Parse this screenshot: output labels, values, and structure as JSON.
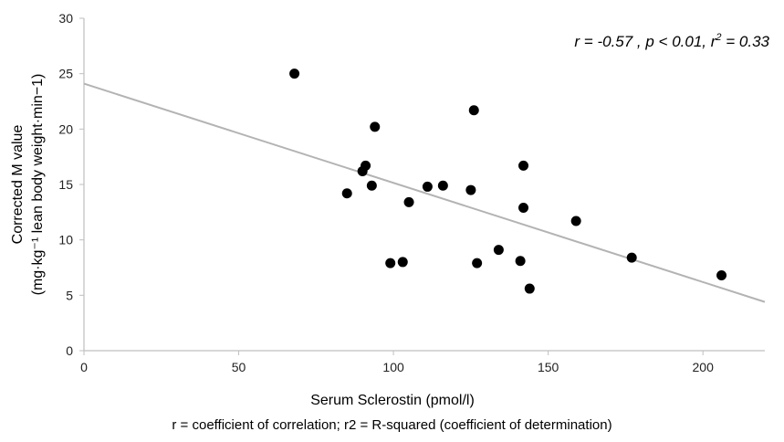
{
  "chart_data": {
    "type": "scatter",
    "xlabel": "Serum Sclerostin (pmol/l)",
    "ylabel_line1": "Corrected M value",
    "ylabel_line2": "(mg·kg⁻¹ lean body weight·min−1)",
    "xlim": [
      0,
      220
    ],
    "ylim": [
      0,
      30
    ],
    "x_ticks": [
      0,
      50,
      100,
      150,
      200
    ],
    "y_ticks": [
      0,
      5,
      10,
      15,
      20,
      25,
      30
    ],
    "grid": false,
    "points": [
      {
        "x": 68,
        "y": 25.0
      },
      {
        "x": 94,
        "y": 20.2
      },
      {
        "x": 126,
        "y": 21.7
      },
      {
        "x": 90,
        "y": 16.2
      },
      {
        "x": 91,
        "y": 16.7
      },
      {
        "x": 142,
        "y": 16.7
      },
      {
        "x": 85,
        "y": 14.2
      },
      {
        "x": 93,
        "y": 14.9
      },
      {
        "x": 111,
        "y": 14.8
      },
      {
        "x": 116,
        "y": 14.9
      },
      {
        "x": 125,
        "y": 14.5
      },
      {
        "x": 105,
        "y": 13.4
      },
      {
        "x": 142,
        "y": 12.9
      },
      {
        "x": 159,
        "y": 11.7
      },
      {
        "x": 134,
        "y": 9.1
      },
      {
        "x": 177,
        "y": 8.4
      },
      {
        "x": 99,
        "y": 7.9
      },
      {
        "x": 103,
        "y": 8.0
      },
      {
        "x": 127,
        "y": 7.9
      },
      {
        "x": 141,
        "y": 8.1
      },
      {
        "x": 206,
        "y": 6.8
      },
      {
        "x": 144,
        "y": 5.6
      }
    ],
    "trendline": {
      "x0": 0,
      "y0": 24.1,
      "x1": 220,
      "y1": 4.4
    },
    "colors": {
      "points": "#000000",
      "trendline": "#b3b3b3",
      "axis": "#bfbfbf"
    }
  },
  "annotation": {
    "r_part": "r = -0.57 ,  p < 0.01, r",
    "sup": "2",
    "tail": " = 0.33"
  },
  "caption": "r = coefficient of correlation; r2 = R-squared (coefficient of determination)"
}
